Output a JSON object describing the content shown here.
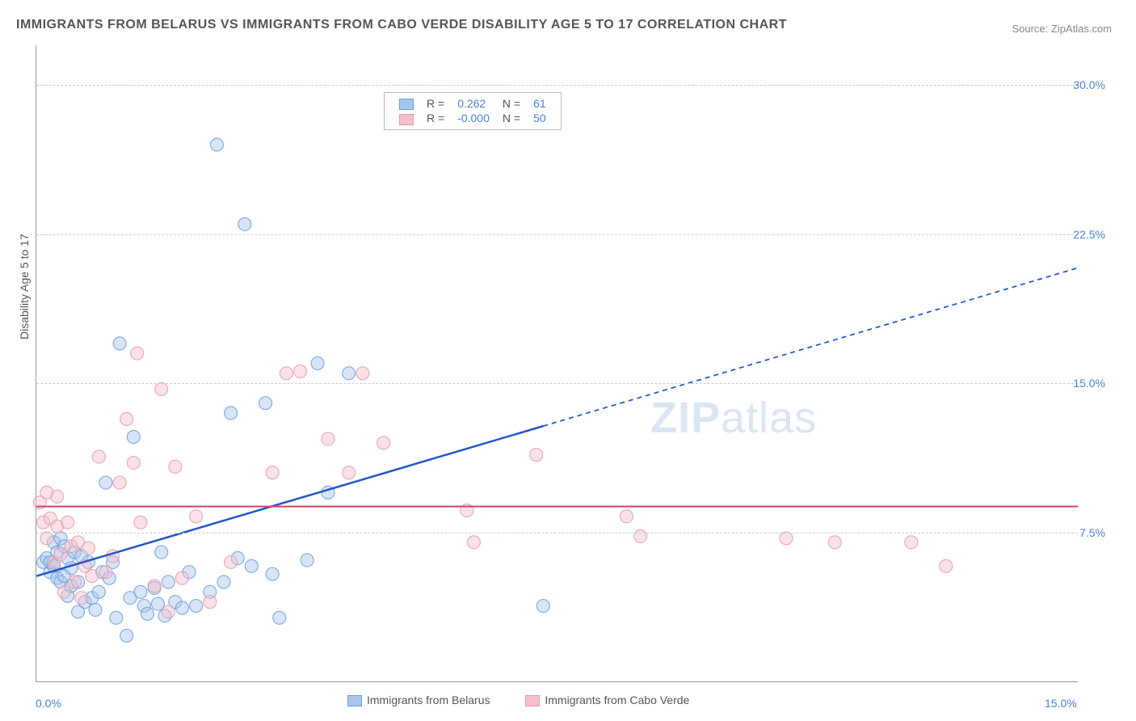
{
  "title": "IMMIGRANTS FROM BELARUS VS IMMIGRANTS FROM CABO VERDE DISABILITY AGE 5 TO 17 CORRELATION CHART",
  "source": "Source: ZipAtlas.com",
  "y_axis_label": "Disability Age 5 to 17",
  "watermark": {
    "bold": "ZIP",
    "rest": "atlas"
  },
  "chart": {
    "type": "scatter",
    "xlim": [
      0,
      15
    ],
    "ylim": [
      0,
      32
    ],
    "x_ticks": [
      {
        "v": 0,
        "label": "0.0%"
      },
      {
        "v": 15,
        "label": "15.0%"
      }
    ],
    "y_ticks": [
      {
        "v": 7.5,
        "label": "7.5%"
      },
      {
        "v": 15.0,
        "label": "15.0%"
      },
      {
        "v": 22.5,
        "label": "22.5%"
      },
      {
        "v": 30.0,
        "label": "30.0%"
      }
    ],
    "grid_color": "#cccccc",
    "background_color": "#ffffff",
    "marker_radius": 8,
    "marker_opacity": 0.45,
    "series": [
      {
        "name": "Immigrants from Belarus",
        "color_stroke": "#6a9de0",
        "color_fill": "#a9c5ea",
        "R": "0.262",
        "N": "61",
        "trend": {
          "color": "#2456c9",
          "width": 2.5,
          "y_at_x0": 5.3,
          "y_at_x15": 20.8,
          "solid_until_x": 7.3
        },
        "points": [
          [
            0.1,
            6.0
          ],
          [
            0.15,
            6.2
          ],
          [
            0.2,
            5.5
          ],
          [
            0.2,
            6.0
          ],
          [
            0.25,
            5.8
          ],
          [
            0.25,
            7.0
          ],
          [
            0.3,
            5.2
          ],
          [
            0.3,
            6.5
          ],
          [
            0.35,
            5.0
          ],
          [
            0.35,
            7.2
          ],
          [
            0.4,
            6.8
          ],
          [
            0.4,
            5.3
          ],
          [
            0.45,
            4.3
          ],
          [
            0.45,
            6.2
          ],
          [
            0.5,
            5.7
          ],
          [
            0.5,
            4.8
          ],
          [
            0.55,
            6.5
          ],
          [
            0.6,
            3.5
          ],
          [
            0.6,
            5.0
          ],
          [
            0.65,
            6.3
          ],
          [
            0.7,
            4.0
          ],
          [
            0.75,
            6.0
          ],
          [
            0.8,
            4.2
          ],
          [
            0.85,
            3.6
          ],
          [
            0.9,
            4.5
          ],
          [
            0.95,
            5.5
          ],
          [
            1.0,
            10.0
          ],
          [
            1.05,
            5.2
          ],
          [
            1.1,
            6.0
          ],
          [
            1.15,
            3.2
          ],
          [
            1.2,
            17.0
          ],
          [
            1.3,
            2.3
          ],
          [
            1.35,
            4.2
          ],
          [
            1.4,
            12.3
          ],
          [
            1.5,
            4.5
          ],
          [
            1.55,
            3.8
          ],
          [
            1.6,
            3.4
          ],
          [
            1.7,
            4.7
          ],
          [
            1.75,
            3.9
          ],
          [
            1.8,
            6.5
          ],
          [
            1.85,
            3.3
          ],
          [
            1.9,
            5.0
          ],
          [
            2.0,
            4.0
          ],
          [
            2.1,
            3.7
          ],
          [
            2.2,
            5.5
          ],
          [
            2.3,
            3.8
          ],
          [
            2.5,
            4.5
          ],
          [
            2.6,
            27.0
          ],
          [
            2.7,
            5.0
          ],
          [
            2.8,
            13.5
          ],
          [
            2.9,
            6.2
          ],
          [
            3.0,
            23.0
          ],
          [
            3.1,
            5.8
          ],
          [
            3.3,
            14.0
          ],
          [
            3.4,
            5.4
          ],
          [
            3.5,
            3.2
          ],
          [
            3.9,
            6.1
          ],
          [
            4.05,
            16.0
          ],
          [
            4.2,
            9.5
          ],
          [
            4.5,
            15.5
          ],
          [
            7.3,
            3.8
          ]
        ]
      },
      {
        "name": "Immigrants from Cabo Verde",
        "color_stroke": "#e79aad",
        "color_fill": "#f3c0cc",
        "R": "-0.000",
        "N": "50",
        "trend": {
          "color": "#d6436b",
          "width": 2,
          "y_at_x0": 8.8,
          "y_at_x15": 8.8,
          "solid_until_x": 15
        },
        "points": [
          [
            0.05,
            9.0
          ],
          [
            0.1,
            8.0
          ],
          [
            0.15,
            7.2
          ],
          [
            0.15,
            9.5
          ],
          [
            0.2,
            8.2
          ],
          [
            0.25,
            6.0
          ],
          [
            0.3,
            7.8
          ],
          [
            0.3,
            9.3
          ],
          [
            0.35,
            6.4
          ],
          [
            0.4,
            4.5
          ],
          [
            0.45,
            8.0
          ],
          [
            0.5,
            6.8
          ],
          [
            0.55,
            5.0
          ],
          [
            0.6,
            7.0
          ],
          [
            0.65,
            4.2
          ],
          [
            0.7,
            5.8
          ],
          [
            0.75,
            6.7
          ],
          [
            0.8,
            5.3
          ],
          [
            0.9,
            11.3
          ],
          [
            1.0,
            5.5
          ],
          [
            1.1,
            6.3
          ],
          [
            1.2,
            10.0
          ],
          [
            1.3,
            13.2
          ],
          [
            1.4,
            11.0
          ],
          [
            1.45,
            16.5
          ],
          [
            1.5,
            8.0
          ],
          [
            1.7,
            4.8
          ],
          [
            1.8,
            14.7
          ],
          [
            1.9,
            3.5
          ],
          [
            2.0,
            10.8
          ],
          [
            2.1,
            5.2
          ],
          [
            2.3,
            8.3
          ],
          [
            2.5,
            4.0
          ],
          [
            2.8,
            6.0
          ],
          [
            3.4,
            10.5
          ],
          [
            3.6,
            15.5
          ],
          [
            3.8,
            15.6
          ],
          [
            4.2,
            12.2
          ],
          [
            4.5,
            10.5
          ],
          [
            4.7,
            15.5
          ],
          [
            5.0,
            12.0
          ],
          [
            6.2,
            8.6
          ],
          [
            6.3,
            7.0
          ],
          [
            7.2,
            11.4
          ],
          [
            8.5,
            8.3
          ],
          [
            8.7,
            7.3
          ],
          [
            10.8,
            7.2
          ],
          [
            11.5,
            7.0
          ],
          [
            12.6,
            7.0
          ],
          [
            13.1,
            5.8
          ]
        ]
      }
    ]
  }
}
